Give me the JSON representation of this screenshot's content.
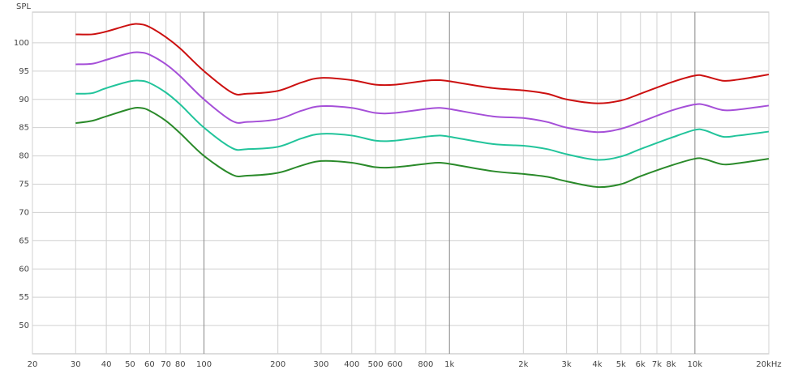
{
  "chart_data": {
    "type": "line",
    "y_label": "SPL",
    "x_log": true,
    "grid": true,
    "x": [
      30,
      35,
      40,
      50,
      55,
      60,
      70,
      80,
      100,
      130,
      150,
      200,
      250,
      300,
      400,
      500,
      600,
      800,
      900,
      1000,
      1500,
      2000,
      2500,
      3000,
      4000,
      5000,
      6000,
      8000,
      10000,
      11000,
      13000,
      15000,
      20000
    ],
    "series": [
      {
        "color": "#cc1010",
        "values": [
          101.5,
          101.5,
          102,
          103.2,
          103.3,
          102.8,
          101,
          99,
          95,
          91.2,
          91,
          91.5,
          93,
          93.8,
          93.4,
          92.6,
          92.6,
          93.3,
          93.4,
          93.2,
          92,
          91.6,
          91,
          90,
          89.3,
          89.8,
          91,
          93,
          94.2,
          94.1,
          93.3,
          93.5,
          94.4
        ]
      },
      {
        "color": "#a54fd8",
        "values": [
          96.2,
          96.3,
          97,
          98.2,
          98.3,
          97.9,
          96.2,
          94.1,
          90,
          86.2,
          86,
          86.5,
          88,
          88.8,
          88.5,
          87.6,
          87.6,
          88.3,
          88.5,
          88.3,
          87,
          86.7,
          86,
          85,
          84.2,
          84.8,
          86,
          88,
          89.1,
          89,
          88.1,
          88.2,
          88.9
        ]
      },
      {
        "color": "#22c49b",
        "values": [
          91,
          91.1,
          92,
          93.2,
          93.3,
          92.9,
          91.2,
          89.1,
          85,
          81.4,
          81.2,
          81.6,
          83.1,
          83.9,
          83.6,
          82.7,
          82.7,
          83.4,
          83.6,
          83.4,
          82.1,
          81.8,
          81.2,
          80.3,
          79.3,
          79.9,
          81.2,
          83.2,
          84.6,
          84.5,
          83.4,
          83.6,
          84.3
        ]
      },
      {
        "color": "#2a8a2a",
        "values": [
          85.8,
          86.2,
          87,
          88.3,
          88.5,
          88,
          86.2,
          84,
          80,
          76.7,
          76.5,
          77,
          78.3,
          79.1,
          78.8,
          78,
          78,
          78.6,
          78.8,
          78.6,
          77.3,
          76.8,
          76.3,
          75.5,
          74.5,
          75,
          76.4,
          78.3,
          79.5,
          79.4,
          78.5,
          78.7,
          79.5
        ]
      }
    ],
    "xlim": [
      20,
      20000
    ],
    "xticks": [
      20,
      30,
      40,
      50,
      60,
      70,
      80,
      100,
      200,
      300,
      400,
      500,
      600,
      800,
      {
        "value": 1000,
        "label": "1k"
      },
      {
        "value": 2000,
        "label": "2k"
      },
      {
        "value": 3000,
        "label": "3k"
      },
      {
        "value": 4000,
        "label": "4k"
      },
      {
        "value": 5000,
        "label": "5k"
      },
      {
        "value": 6000,
        "label": "6k"
      },
      {
        "value": 7000,
        "label": "7k"
      },
      {
        "value": 8000,
        "label": "8k"
      },
      {
        "value": 10000,
        "label": "10k"
      },
      {
        "value": 20000,
        "label": "20kHz"
      }
    ],
    "ylim": [
      45,
      105
    ],
    "yticks": [
      50,
      55,
      60,
      65,
      70,
      75,
      80,
      85,
      90,
      95,
      100
    ]
  }
}
